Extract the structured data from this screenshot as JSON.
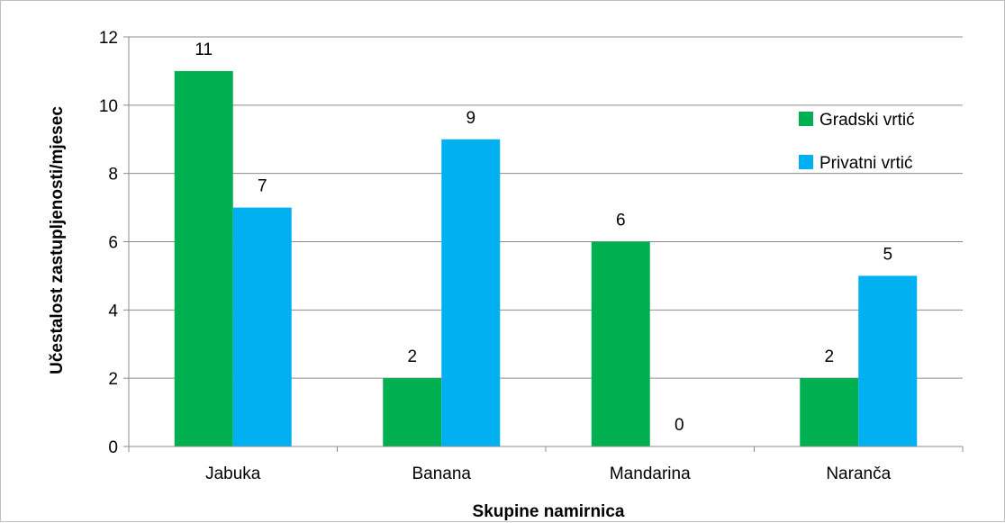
{
  "chart_data": {
    "type": "bar",
    "categories": [
      "Jabuka",
      "Banana",
      "Mandarina",
      "Naranča"
    ],
    "series": [
      {
        "name": "Gradski vrtić",
        "values": [
          11,
          2,
          6,
          2
        ],
        "color": "#00b050"
      },
      {
        "name": "Privatni vrtić",
        "values": [
          7,
          9,
          0,
          5
        ],
        "color": "#00b0f0"
      }
    ],
    "xlabel": "Skupine namirnica",
    "ylabel": "Učestalost zastupljenosti/mjesec",
    "ylim": [
      0,
      12
    ],
    "yticks": [
      0,
      2,
      4,
      6,
      8,
      10,
      12
    ],
    "grid": true,
    "legend": "right"
  }
}
